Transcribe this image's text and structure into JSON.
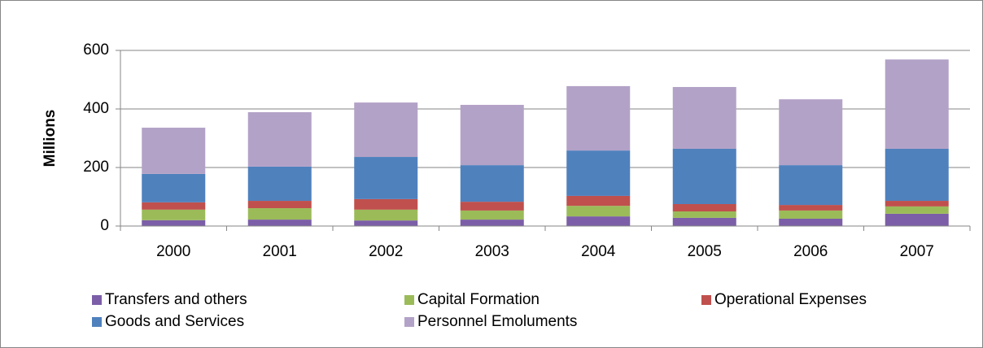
{
  "chart_data": {
    "type": "stacked_bar",
    "y_label": "Millions",
    "categories": [
      "2000",
      "2001",
      "2002",
      "2003",
      "2004",
      "2005",
      "2006",
      "2007"
    ],
    "series": [
      {
        "name": "Transfers and others",
        "color": "#7b5ea7",
        "values": [
          20,
          22,
          19,
          22,
          33,
          28,
          25,
          42
        ]
      },
      {
        "name": "Capital Formation",
        "color": "#9bbb59",
        "values": [
          36,
          39,
          37,
          31,
          36,
          22,
          28,
          25
        ]
      },
      {
        "name": "Operational Expenses",
        "color": "#c0504d",
        "values": [
          25,
          25,
          36,
          30,
          34,
          25,
          19,
          19
        ]
      },
      {
        "name": "Goods and Services",
        "color": "#4f81bd",
        "values": [
          97,
          117,
          144,
          125,
          155,
          189,
          136,
          178
        ]
      },
      {
        "name": "Personnel Emoluments",
        "color": "#b3a2c7",
        "values": [
          158,
          186,
          186,
          206,
          220,
          211,
          225,
          305
        ]
      }
    ],
    "ylim": [
      0,
      600
    ],
    "yticks": [
      0,
      200,
      400,
      600
    ],
    "grid": true,
    "legend": "bottom"
  }
}
